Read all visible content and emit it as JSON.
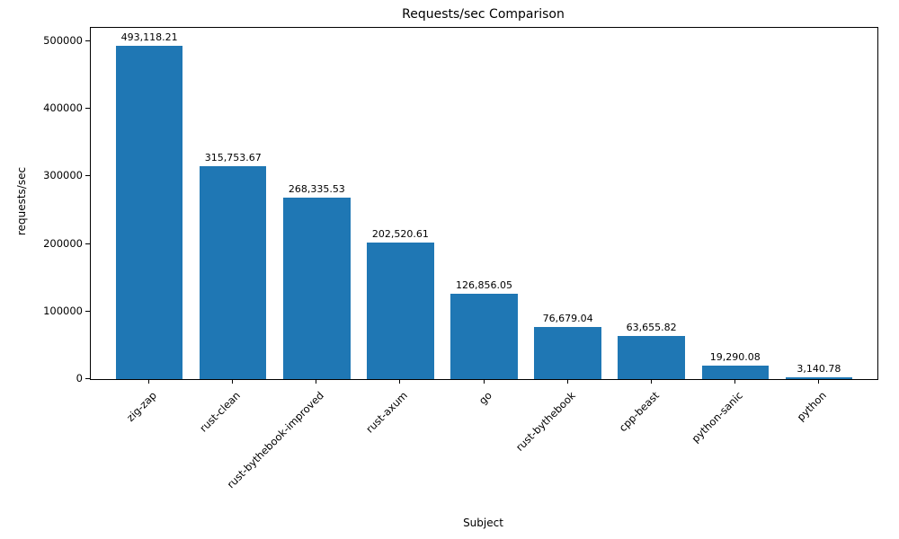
{
  "chart_data": {
    "type": "bar",
    "title": "Requests/sec Comparison",
    "xlabel": "Subject",
    "ylabel": "requests/sec",
    "categories": [
      "zig-zap",
      "rust-clean",
      "rust-bythebook-improved",
      "rust-axum",
      "go",
      "rust-bythebook",
      "cpp-beast",
      "python-sanic",
      "python"
    ],
    "values": [
      493118.21,
      315753.67,
      268335.53,
      202520.61,
      126856.05,
      76679.04,
      63655.82,
      19290.08,
      3140.78
    ],
    "value_labels": [
      "493,118.21",
      "315,753.67",
      "268,335.53",
      "202,520.61",
      "126,856.05",
      "76,679.04",
      "63,655.82",
      "19,290.08",
      "3,140.78"
    ],
    "yticks": [
      0,
      100000,
      200000,
      300000,
      400000,
      500000
    ],
    "ytick_labels": [
      "0",
      "100000",
      "200000",
      "300000",
      "400000",
      "500000"
    ],
    "ylim": [
      0,
      520000
    ],
    "bar_color": "#1f77b4",
    "grid": false,
    "legend_position": "none"
  }
}
